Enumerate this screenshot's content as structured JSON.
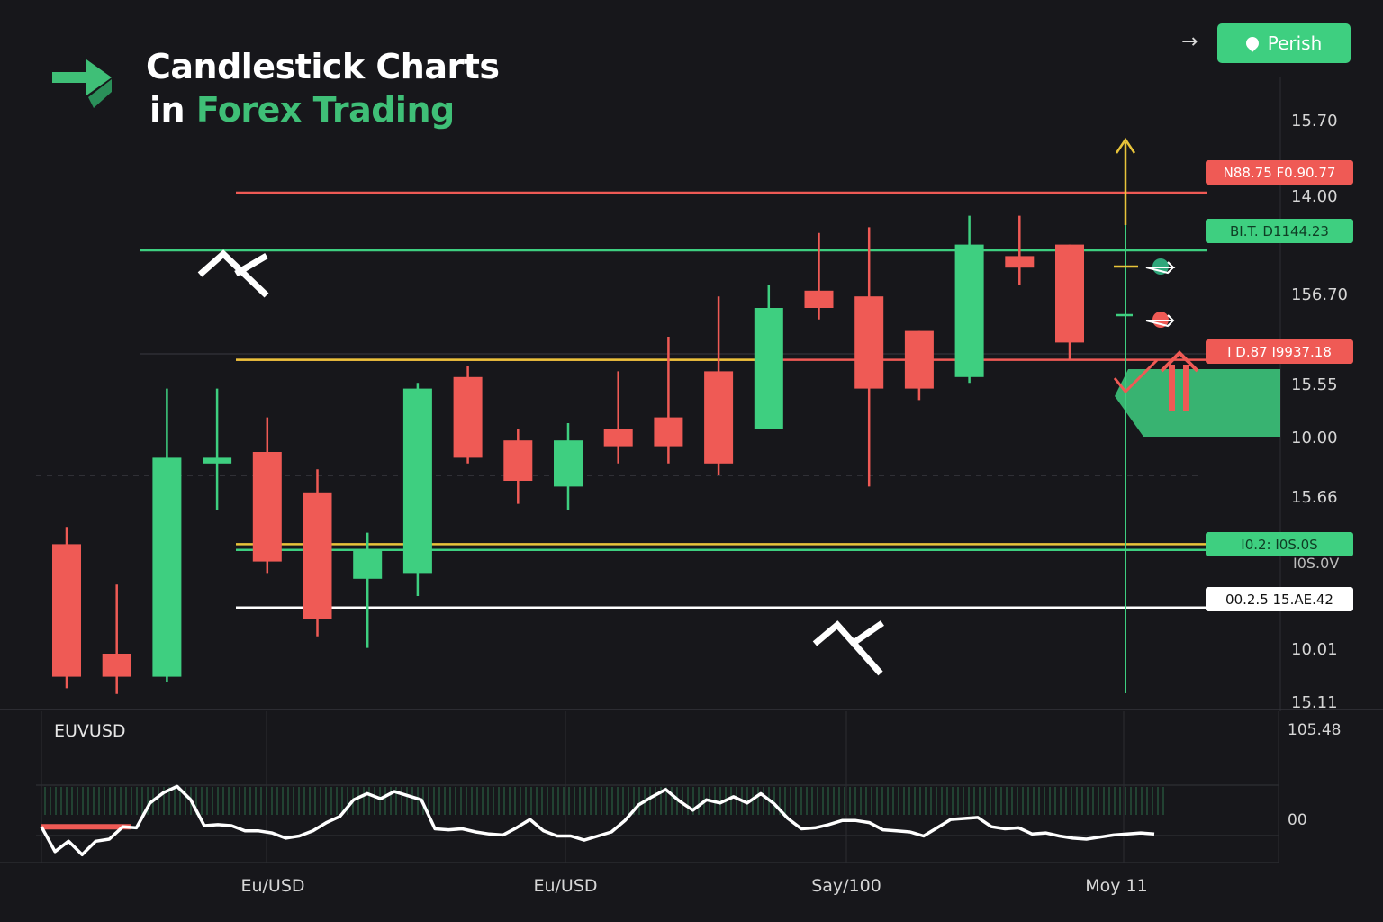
{
  "header": {
    "title_line1": "Candlestick Charts",
    "title_line2_prefix": "in ",
    "title_line2_accent": "Forex Trading",
    "action_button_label": "Perish",
    "arrow_glyph": "→"
  },
  "colors": {
    "background": "#17171b",
    "bull": "#3ecf80",
    "bear": "#ef5a55",
    "support": "#e8c43a",
    "accent_green": "#3fbf77",
    "line_white": "#ffffff"
  },
  "chart_data": [
    {
      "type": "candlestick",
      "title": "",
      "axis_labels_right": [
        "15.70",
        "14.00",
        "156.70",
        "15.55",
        "10.00",
        "15.66",
        "10.01",
        "15.11"
      ],
      "candles": [
        {
          "open": 0.29,
          "close": 0.06,
          "high": 0.32,
          "low": 0.04,
          "dir": "bear"
        },
        {
          "open": 0.1,
          "close": 0.06,
          "high": 0.22,
          "low": 0.03,
          "dir": "bear"
        },
        {
          "open": 0.06,
          "close": 0.44,
          "high": 0.56,
          "low": 0.05,
          "dir": "bull"
        },
        {
          "open": 0.43,
          "close": 0.44,
          "high": 0.56,
          "low": 0.35,
          "dir": "bull"
        },
        {
          "open": 0.45,
          "close": 0.26,
          "high": 0.51,
          "low": 0.24,
          "dir": "bear"
        },
        {
          "open": 0.38,
          "close": 0.16,
          "high": 0.42,
          "low": 0.13,
          "dir": "bear"
        },
        {
          "open": 0.23,
          "close": 0.28,
          "high": 0.31,
          "low": 0.11,
          "dir": "bull"
        },
        {
          "open": 0.24,
          "close": 0.56,
          "high": 0.57,
          "low": 0.2,
          "dir": "bull"
        },
        {
          "open": 0.58,
          "close": 0.44,
          "high": 0.6,
          "low": 0.43,
          "dir": "bear"
        },
        {
          "open": 0.47,
          "close": 0.4,
          "high": 0.49,
          "low": 0.36,
          "dir": "bear"
        },
        {
          "open": 0.39,
          "close": 0.47,
          "high": 0.5,
          "low": 0.35,
          "dir": "bull"
        },
        {
          "open": 0.49,
          "close": 0.46,
          "high": 0.59,
          "low": 0.43,
          "dir": "bear"
        },
        {
          "open": 0.51,
          "close": 0.46,
          "high": 0.65,
          "low": 0.43,
          "dir": "bear"
        },
        {
          "open": 0.59,
          "close": 0.43,
          "high": 0.72,
          "low": 0.41,
          "dir": "bear"
        },
        {
          "open": 0.49,
          "close": 0.7,
          "high": 0.74,
          "low": 0.49,
          "dir": "bull"
        },
        {
          "open": 0.73,
          "close": 0.7,
          "high": 0.83,
          "low": 0.68,
          "dir": "bear"
        },
        {
          "open": 0.72,
          "close": 0.56,
          "high": 0.84,
          "low": 0.39,
          "dir": "bear"
        },
        {
          "open": 0.66,
          "close": 0.56,
          "high": 0.66,
          "low": 0.54,
          "dir": "bear"
        },
        {
          "open": 0.58,
          "close": 0.81,
          "high": 0.86,
          "low": 0.57,
          "dir": "bull"
        },
        {
          "open": 0.79,
          "close": 0.77,
          "high": 0.86,
          "low": 0.74,
          "dir": "bear"
        },
        {
          "open": 0.81,
          "close": 0.64,
          "high": 0.81,
          "low": 0.61,
          "dir": "bear"
        }
      ],
      "levels": [
        {
          "value": 0.9,
          "color": "bear",
          "label": "N88.75 F0.90.77"
        },
        {
          "value": 0.8,
          "color": "bull",
          "label": "BI.T. D1144.23"
        },
        {
          "value": 0.61,
          "color": "bear",
          "label": "I D.87 I9937.18"
        },
        {
          "value": 0.28,
          "color": "bull",
          "label": "I0.2: I0S.0S"
        },
        {
          "value": 0.18,
          "color": "white",
          "label": "00.2.5 15.AE.42"
        }
      ],
      "level_sublabel": "I0S.0V"
    },
    {
      "type": "line",
      "label": "EUVUSD",
      "right_labels": [
        "105.48",
        "00"
      ],
      "x_labels": [
        "Eu/USD",
        "Eu/USD",
        "Say/100",
        "Moy 11"
      ],
      "values": [
        0.32,
        0.08,
        0.18,
        0.05,
        0.18,
        0.2,
        0.32,
        0.31,
        0.55,
        0.65,
        0.71,
        0.58,
        0.33,
        0.34,
        0.33,
        0.28,
        0.28,
        0.26,
        0.21,
        0.23,
        0.28,
        0.36,
        0.42,
        0.58,
        0.64,
        0.59,
        0.66,
        0.62,
        0.58,
        0.3,
        0.29,
        0.3,
        0.27,
        0.25,
        0.24,
        0.31,
        0.39,
        0.28,
        0.23,
        0.23,
        0.19,
        0.23,
        0.27,
        0.38,
        0.53,
        0.61,
        0.68,
        0.57,
        0.48,
        0.58,
        0.55,
        0.61,
        0.55,
        0.64,
        0.54,
        0.4,
        0.3,
        0.31,
        0.34,
        0.38,
        0.38,
        0.36,
        0.29,
        0.28,
        0.27,
        0.23,
        0.31,
        0.39,
        0.4,
        0.41,
        0.32,
        0.3,
        0.31,
        0.25,
        0.26,
        0.23,
        0.21,
        0.2,
        0.22,
        0.24,
        0.25,
        0.26,
        0.25
      ]
    }
  ]
}
